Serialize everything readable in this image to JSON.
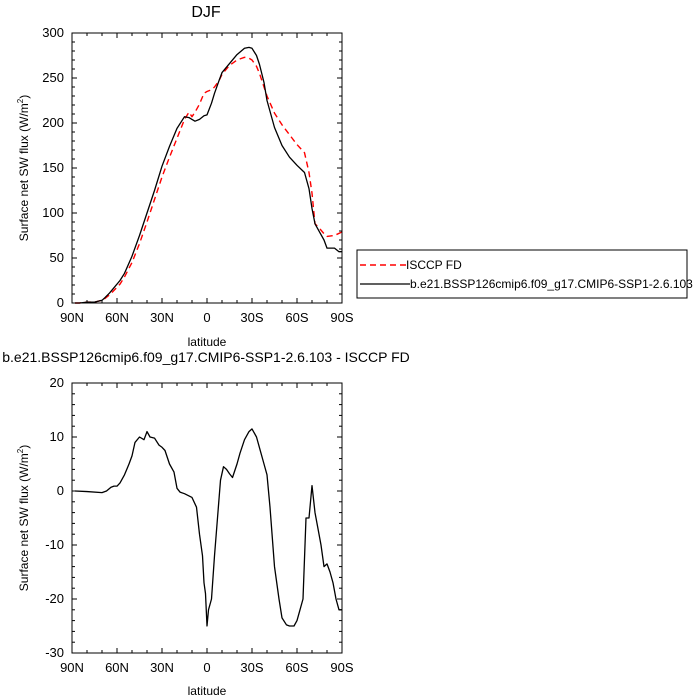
{
  "chart_data": [
    {
      "type": "line",
      "title": "DJF",
      "xlabel": "latitude",
      "ylabel_main": "Surface net SW flux (W/m",
      "ylabel_sup": "2",
      "ylabel_close": ")",
      "xlim": [
        90,
        -90
      ],
      "ylim": [
        0,
        300
      ],
      "xticks": [
        {
          "value": 90,
          "label": "90N"
        },
        {
          "value": 60,
          "label": "60N"
        },
        {
          "value": 30,
          "label": "30N"
        },
        {
          "value": 0,
          "label": "0"
        },
        {
          "value": -30,
          "label": "30S"
        },
        {
          "value": -60,
          "label": "60S"
        },
        {
          "value": -90,
          "label": "90S"
        }
      ],
      "yticks": [
        0,
        50,
        100,
        150,
        200,
        250,
        300
      ],
      "legend_placement": "right",
      "series": [
        {
          "name": "ISCCP FD",
          "color": "#ff0000",
          "dash": "dashed",
          "x": [
            88,
            85,
            80,
            75,
            70,
            68,
            65,
            62,
            58,
            55,
            50,
            45,
            40,
            35,
            30,
            25,
            20,
            15,
            12,
            10,
            8,
            5,
            2,
            0,
            -3,
            -5,
            -8,
            -10,
            -15,
            -20,
            -25,
            -28,
            -30,
            -33,
            -35,
            -40,
            -45,
            -50,
            -55,
            -60,
            -65,
            -68,
            -70,
            -72,
            -75,
            -78,
            -80,
            -85,
            -90
          ],
          "y": [
            0,
            0,
            1,
            1,
            3,
            5,
            9,
            14,
            21,
            29,
            45,
            66,
            90,
            115,
            140,
            162,
            183,
            204,
            212,
            207,
            212,
            221,
            233,
            235,
            237,
            240,
            247,
            254,
            264,
            270,
            273,
            272,
            270,
            263,
            255,
            230,
            211,
            198,
            187,
            176,
            167,
            145,
            122,
            88,
            83,
            77,
            74,
            75,
            79
          ]
        },
        {
          "name": "b.e21.BSSP126cmip6.f09_g17.CMIP6-SSP1-2.6.103",
          "color": "#000000",
          "dash": "solid",
          "x": [
            88,
            85,
            80,
            75,
            70,
            68,
            65,
            62,
            58,
            55,
            50,
            45,
            40,
            35,
            30,
            25,
            20,
            15,
            12,
            10,
            8,
            5,
            2,
            0,
            -3,
            -5,
            -8,
            -10,
            -15,
            -20,
            -25,
            -28,
            -30,
            -33,
            -35,
            -38,
            -40,
            -45,
            -50,
            -55,
            -60,
            -65,
            -68,
            -70,
            -72,
            -75,
            -78,
            -80,
            -85,
            -88,
            -90
          ],
          "y": [
            0,
            0,
            1,
            1,
            3,
            6,
            11,
            17,
            25,
            33,
            52,
            75,
            100,
            125,
            152,
            174,
            194,
            207,
            206,
            204,
            202,
            204,
            208,
            209,
            222,
            233,
            247,
            256,
            266,
            276,
            283,
            284,
            283,
            275,
            265,
            245,
            225,
            195,
            175,
            162,
            153,
            145,
            127,
            105,
            88,
            79,
            70,
            61,
            61,
            57,
            57
          ]
        }
      ]
    },
    {
      "type": "line",
      "title": "b.e21.BSSP126cmip6.f09_g17.CMIP6-SSP1-2.6.103 - ISCCP FD",
      "xlabel": "latitude",
      "ylabel_main": "Surface net SW flux (W/m",
      "ylabel_sup": "2",
      "ylabel_close": ")",
      "xlim": [
        90,
        -90
      ],
      "ylim": [
        -30,
        20
      ],
      "xticks": [
        {
          "value": 90,
          "label": "90N"
        },
        {
          "value": 60,
          "label": "60N"
        },
        {
          "value": 30,
          "label": "30N"
        },
        {
          "value": 0,
          "label": "0"
        },
        {
          "value": -30,
          "label": "30S"
        },
        {
          "value": -60,
          "label": "60S"
        },
        {
          "value": -90,
          "label": "90S"
        }
      ],
      "yticks": [
        -30,
        -20,
        -10,
        0,
        10,
        20
      ],
      "series": [
        {
          "color": "#000000",
          "dash": "solid",
          "x": [
            88,
            80,
            70,
            67,
            64,
            62,
            60,
            58,
            55,
            52,
            50,
            48,
            45,
            42,
            40,
            38,
            35,
            32,
            30,
            28,
            25,
            22,
            20,
            18,
            15,
            10,
            7,
            5,
            3,
            2,
            1,
            0,
            -1,
            -3,
            -5,
            -7,
            -9,
            -11,
            -13,
            -15,
            -17,
            -20,
            -22,
            -25,
            -28,
            -30,
            -33,
            -35,
            -38,
            -40,
            -42,
            -45,
            -48,
            -50,
            -53,
            -55,
            -58,
            -60,
            -62,
            -64,
            -66,
            -67,
            -68,
            -70,
            -72,
            -74,
            -76,
            -78,
            -80,
            -82,
            -84,
            -86,
            -88,
            -90
          ],
          "y": [
            0,
            -0.1,
            -0.3,
            0,
            0.7,
            0.9,
            0.9,
            1.5,
            3,
            5,
            6.5,
            9,
            10,
            9.5,
            11,
            10,
            9.8,
            8.5,
            8.1,
            7.5,
            5,
            3.5,
            0.5,
            -0.2,
            -0.5,
            -1.2,
            -3,
            -8,
            -12,
            -17,
            -19,
            -25,
            -22,
            -20,
            -12,
            -5,
            2,
            4.5,
            4,
            3.2,
            2.5,
            5,
            7,
            9.5,
            11,
            11.5,
            10,
            8,
            5,
            3,
            -3,
            -14,
            -20,
            -23.5,
            -24.8,
            -25,
            -25,
            -24,
            -22,
            -20,
            -5,
            -5,
            -5,
            1,
            -4,
            -7,
            -10,
            -14,
            -13.5,
            -15,
            -17,
            -20,
            -22,
            -22
          ]
        }
      ]
    }
  ]
}
